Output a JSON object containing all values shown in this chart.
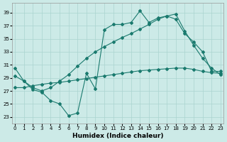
{
  "xlabel": "Humidex (Indice chaleur)",
  "bg_color": "#cceae7",
  "grid_color": "#aad4d0",
  "line_color": "#1a7a6e",
  "x_ticks": [
    0,
    1,
    2,
    3,
    4,
    5,
    6,
    7,
    8,
    9,
    10,
    11,
    12,
    13,
    14,
    15,
    16,
    17,
    18,
    19,
    20,
    21,
    22,
    23
  ],
  "y_ticks": [
    23,
    25,
    27,
    29,
    31,
    33,
    35,
    37,
    39
  ],
  "xlim": [
    -0.3,
    23.3
  ],
  "ylim": [
    22.0,
    40.5
  ],
  "line1_x": [
    0,
    1,
    2,
    3,
    4,
    5,
    6,
    7,
    8,
    9,
    10,
    11,
    12,
    13,
    14,
    15,
    16,
    17,
    18,
    19,
    20,
    21,
    22,
    23
  ],
  "line1_y": [
    30.5,
    28.5,
    27.2,
    26.8,
    25.5,
    25.0,
    23.2,
    23.6,
    29.7,
    27.3,
    36.4,
    37.2,
    37.2,
    37.5,
    39.3,
    37.5,
    38.2,
    38.5,
    38.0,
    35.8,
    34.5,
    33.0,
    30.0,
    30.0
  ],
  "line2_x": [
    0,
    1,
    2,
    3,
    4,
    5,
    6,
    7,
    8,
    9,
    10,
    11,
    12,
    13,
    14,
    15,
    16,
    17,
    18,
    19,
    20,
    21,
    22,
    23
  ],
  "line2_y": [
    29.3,
    28.5,
    27.5,
    27.0,
    27.5,
    28.5,
    29.5,
    30.8,
    32.0,
    33.0,
    33.8,
    34.5,
    35.2,
    35.8,
    36.5,
    37.2,
    38.0,
    38.5,
    38.8,
    36.2,
    34.0,
    32.0,
    30.5,
    29.5
  ],
  "line3_x": [
    0,
    1,
    2,
    3,
    4,
    5,
    6,
    7,
    8,
    9,
    10,
    11,
    12,
    13,
    14,
    15,
    16,
    17,
    18,
    19,
    20,
    21,
    22,
    23
  ],
  "line3_y": [
    27.5,
    27.5,
    27.8,
    28.0,
    28.2,
    28.3,
    28.5,
    28.7,
    28.9,
    29.1,
    29.3,
    29.5,
    29.7,
    29.9,
    30.1,
    30.2,
    30.3,
    30.4,
    30.5,
    30.5,
    30.3,
    30.0,
    29.8,
    29.7
  ]
}
